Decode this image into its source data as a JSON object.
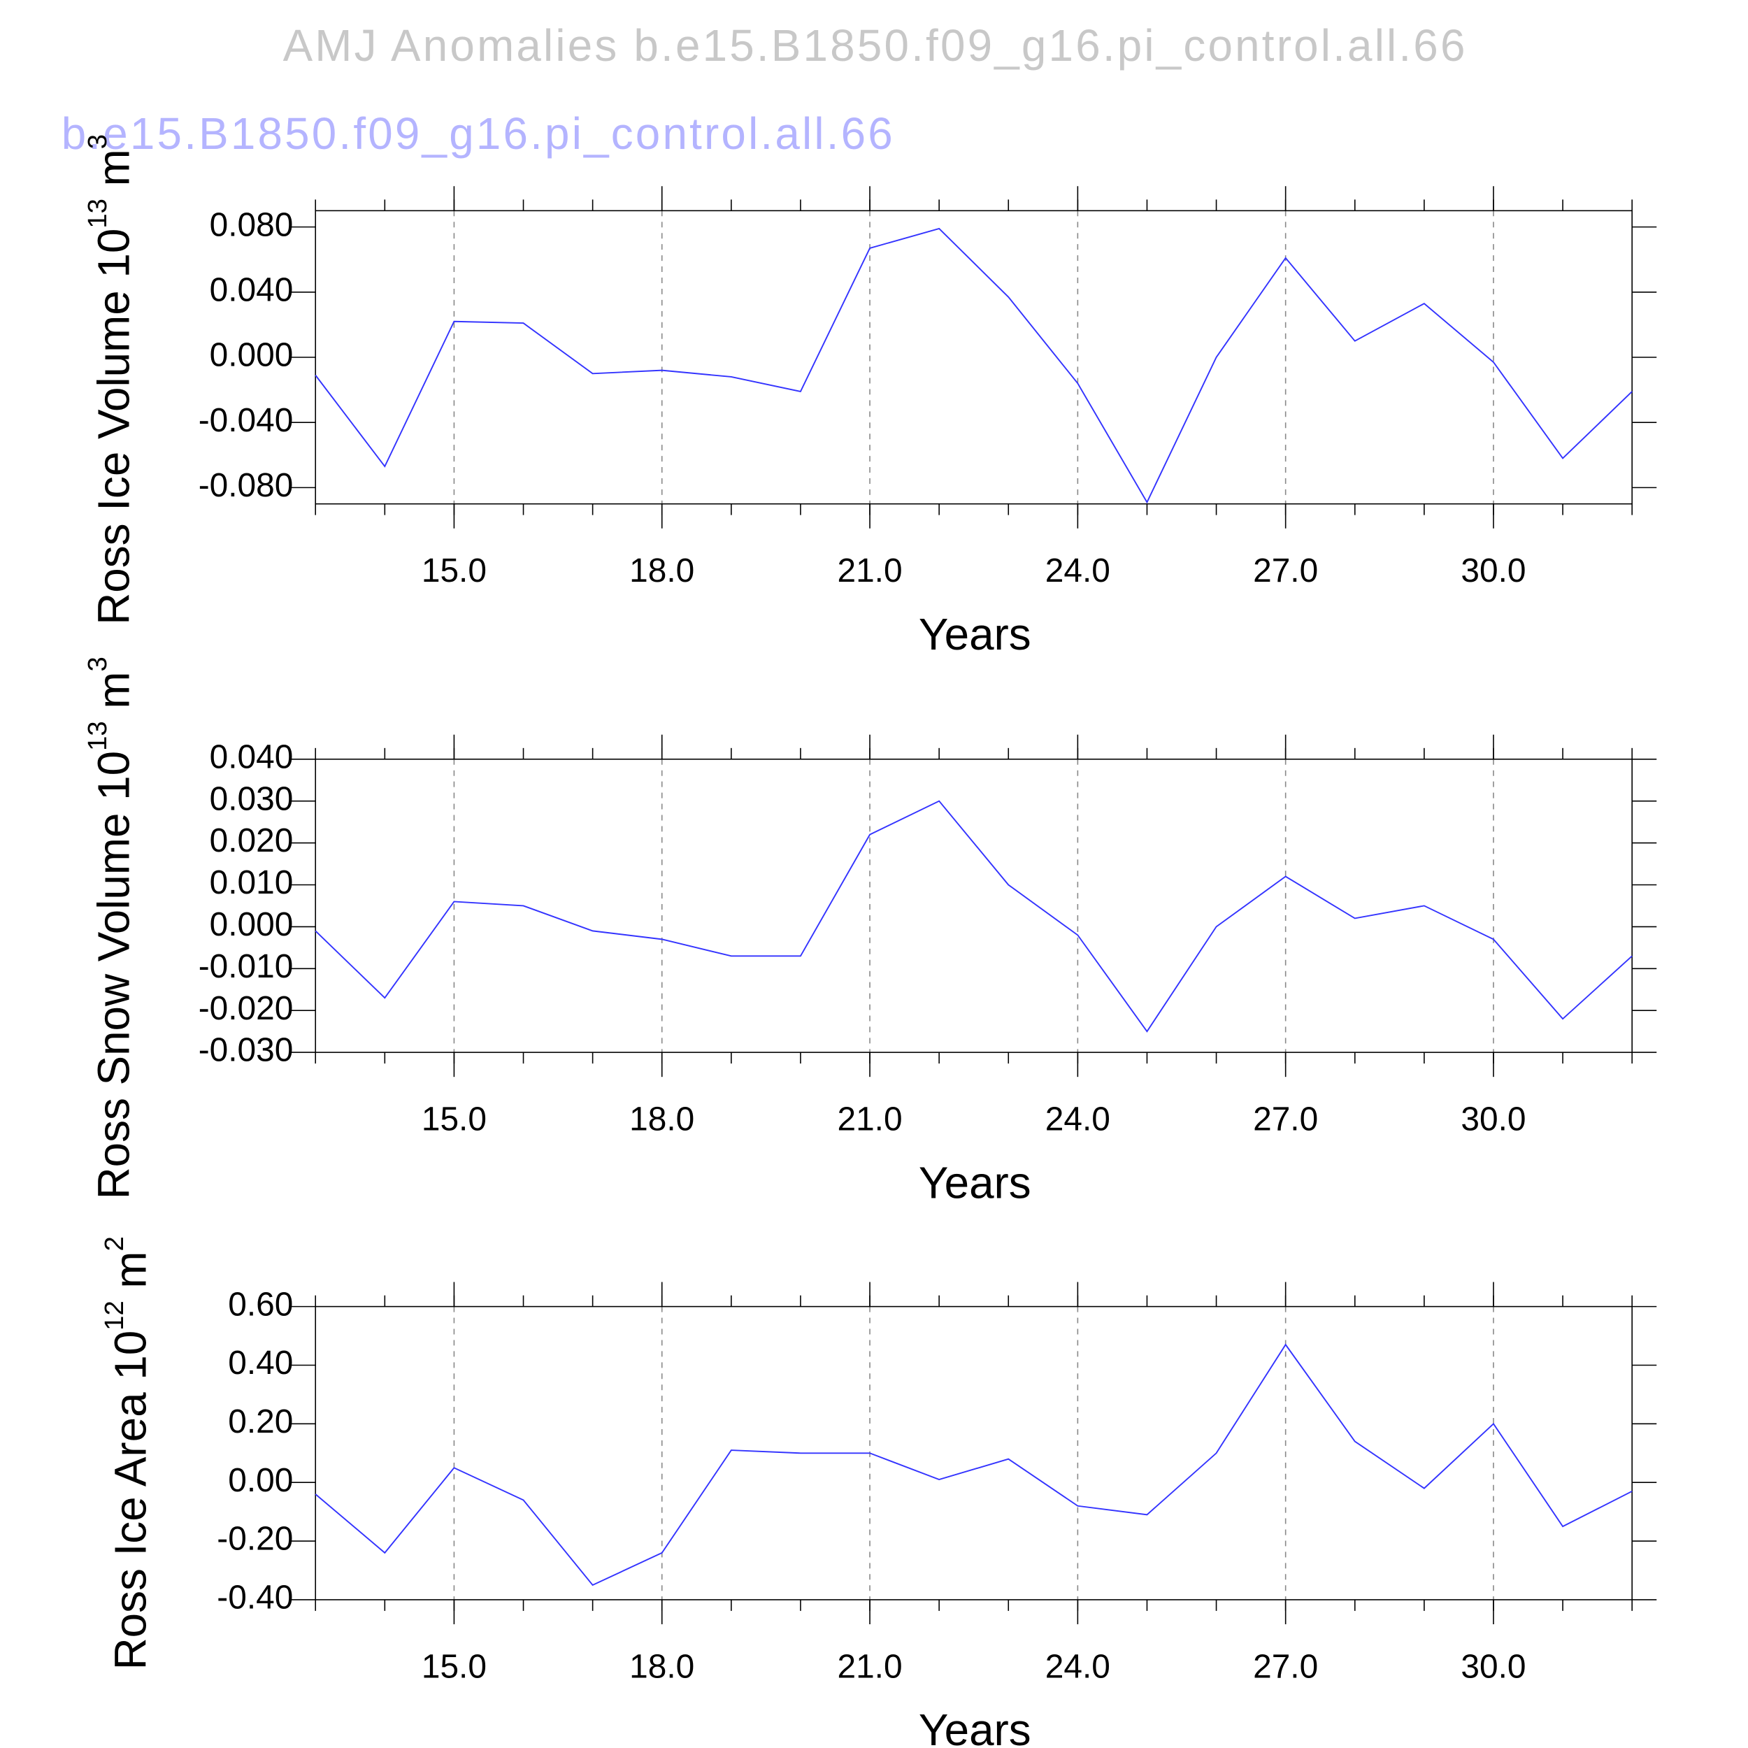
{
  "chart_data": [
    {
      "type": "line",
      "title": "AMJ Anomalies b.e15.B1850.f09_g16.pi_control.all.66",
      "subtitle": "b.e15.B1850.f09_g16.pi_control.all.66",
      "ylabel": [
        "Ross Ice Volume 10",
        "13",
        " m",
        "3"
      ],
      "xlabel": "Years",
      "x": [
        13,
        14,
        15,
        16,
        17,
        18,
        19,
        20,
        21,
        22,
        23,
        24,
        25,
        26,
        27,
        28,
        29,
        30,
        31,
        32
      ],
      "series": [
        {
          "color": "#3333ff",
          "values": [
            -0.011,
            -0.067,
            0.022,
            0.021,
            -0.01,
            -0.008,
            -0.012,
            -0.021,
            0.067,
            0.079,
            0.037,
            -0.016,
            -0.089,
            0.0,
            0.061,
            0.01,
            0.033,
            -0.003,
            -0.062,
            -0.021
          ]
        }
      ],
      "xlim": [
        13,
        32
      ],
      "ylim": [
        -0.09,
        0.09
      ],
      "xticks": [
        {
          "value": 15,
          "label": "15.0"
        },
        {
          "value": 18,
          "label": "18.0"
        },
        {
          "value": 21,
          "label": "21.0"
        },
        {
          "value": 24,
          "label": "24.0"
        },
        {
          "value": 27,
          "label": "27.0"
        },
        {
          "value": 30,
          "label": "30.0"
        }
      ],
      "yticks": [
        {
          "value": -0.08,
          "label": "-0.080"
        },
        {
          "value": -0.04,
          "label": "-0.040"
        },
        {
          "value": 0,
          "label": "0.000"
        },
        {
          "value": 0.04,
          "label": "0.040"
        },
        {
          "value": 0.08,
          "label": "0.080"
        }
      ],
      "grid": "x"
    },
    {
      "type": "line",
      "ylabel": [
        "Ross Snow Volume 10",
        "13",
        " m",
        "3"
      ],
      "xlabel": "Years",
      "x": [
        13,
        14,
        15,
        16,
        17,
        18,
        19,
        20,
        21,
        22,
        23,
        24,
        25,
        26,
        27,
        28,
        29,
        30,
        31,
        32
      ],
      "series": [
        {
          "color": "#3333ff",
          "values": [
            -0.001,
            -0.017,
            0.006,
            0.005,
            -0.001,
            -0.003,
            -0.007,
            -0.007,
            0.022,
            0.03,
            0.01,
            -0.002,
            -0.025,
            0.0,
            0.012,
            0.002,
            0.005,
            -0.003,
            -0.022,
            -0.007
          ]
        }
      ],
      "xlim": [
        13,
        32
      ],
      "ylim": [
        -0.03,
        0.04
      ],
      "xticks": [
        {
          "value": 15,
          "label": "15.0"
        },
        {
          "value": 18,
          "label": "18.0"
        },
        {
          "value": 21,
          "label": "21.0"
        },
        {
          "value": 24,
          "label": "24.0"
        },
        {
          "value": 27,
          "label": "27.0"
        },
        {
          "value": 30,
          "label": "30.0"
        }
      ],
      "yticks": [
        {
          "value": -0.03,
          "label": "-0.030"
        },
        {
          "value": -0.02,
          "label": "-0.020"
        },
        {
          "value": -0.01,
          "label": "-0.010"
        },
        {
          "value": 0,
          "label": "0.000"
        },
        {
          "value": 0.01,
          "label": "0.010"
        },
        {
          "value": 0.02,
          "label": "0.020"
        },
        {
          "value": 0.03,
          "label": "0.030"
        },
        {
          "value": 0.04,
          "label": "0.040"
        }
      ],
      "grid": "x"
    },
    {
      "type": "line",
      "ylabel": [
        "Ross Ice Area 10",
        "12",
        " m",
        "2"
      ],
      "xlabel": "Years",
      "x": [
        13,
        14,
        15,
        16,
        17,
        18,
        19,
        20,
        21,
        22,
        23,
        24,
        25,
        26,
        27,
        28,
        29,
        30,
        31,
        32
      ],
      "series": [
        {
          "color": "#3333ff",
          "values": [
            -0.04,
            -0.24,
            0.05,
            -0.06,
            -0.35,
            -0.24,
            0.11,
            0.1,
            0.1,
            0.01,
            0.08,
            -0.08,
            -0.11,
            0.1,
            0.47,
            0.14,
            -0.02,
            0.2,
            -0.15,
            -0.03
          ]
        }
      ],
      "xlim": [
        13,
        32
      ],
      "ylim": [
        -0.4,
        0.6
      ],
      "xticks": [
        {
          "value": 15,
          "label": "15.0"
        },
        {
          "value": 18,
          "label": "18.0"
        },
        {
          "value": 21,
          "label": "21.0"
        },
        {
          "value": 24,
          "label": "24.0"
        },
        {
          "value": 27,
          "label": "27.0"
        },
        {
          "value": 30,
          "label": "30.0"
        }
      ],
      "yticks": [
        {
          "value": -0.4,
          "label": "-0.40"
        },
        {
          "value": -0.2,
          "label": "-0.20"
        },
        {
          "value": 0,
          "label": "0.00"
        },
        {
          "value": 0.2,
          "label": "0.20"
        },
        {
          "value": 0.4,
          "label": "0.40"
        },
        {
          "value": 0.6,
          "label": "0.60"
        }
      ],
      "grid": "x"
    }
  ]
}
